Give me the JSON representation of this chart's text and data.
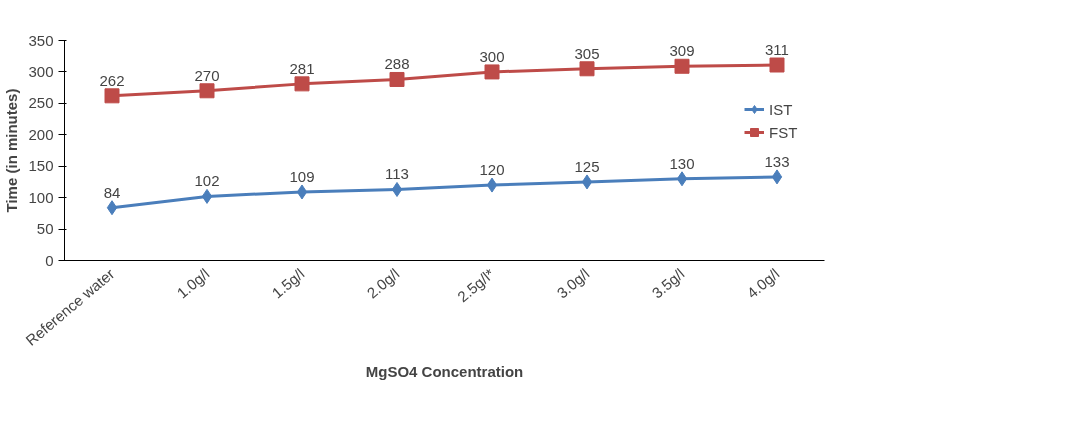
{
  "chart_data": {
    "type": "line",
    "xlabel": "MgSO4 Concentration",
    "ylabel": "Time (in minutes)",
    "categories": [
      "Reference water",
      "1.0g/l",
      "1.5g/l",
      "2.0g/l",
      "2.5g/l*",
      "3.0g/l",
      "3.5g/l",
      "4.0g/l"
    ],
    "series": [
      {
        "name": "IST",
        "color": "#4a7ebb",
        "marker": "diamond",
        "values": [
          84,
          102,
          109,
          113,
          120,
          125,
          130,
          133
        ]
      },
      {
        "name": "FST",
        "color": "#be4b48",
        "marker": "square",
        "values": [
          262,
          270,
          281,
          288,
          300,
          305,
          309,
          311
        ]
      }
    ],
    "ylim": [
      0,
      350
    ],
    "yticks": [
      0,
      50,
      100,
      150,
      200,
      250,
      300,
      350
    ],
    "data_labels": true,
    "legend": "right",
    "grid": false
  }
}
